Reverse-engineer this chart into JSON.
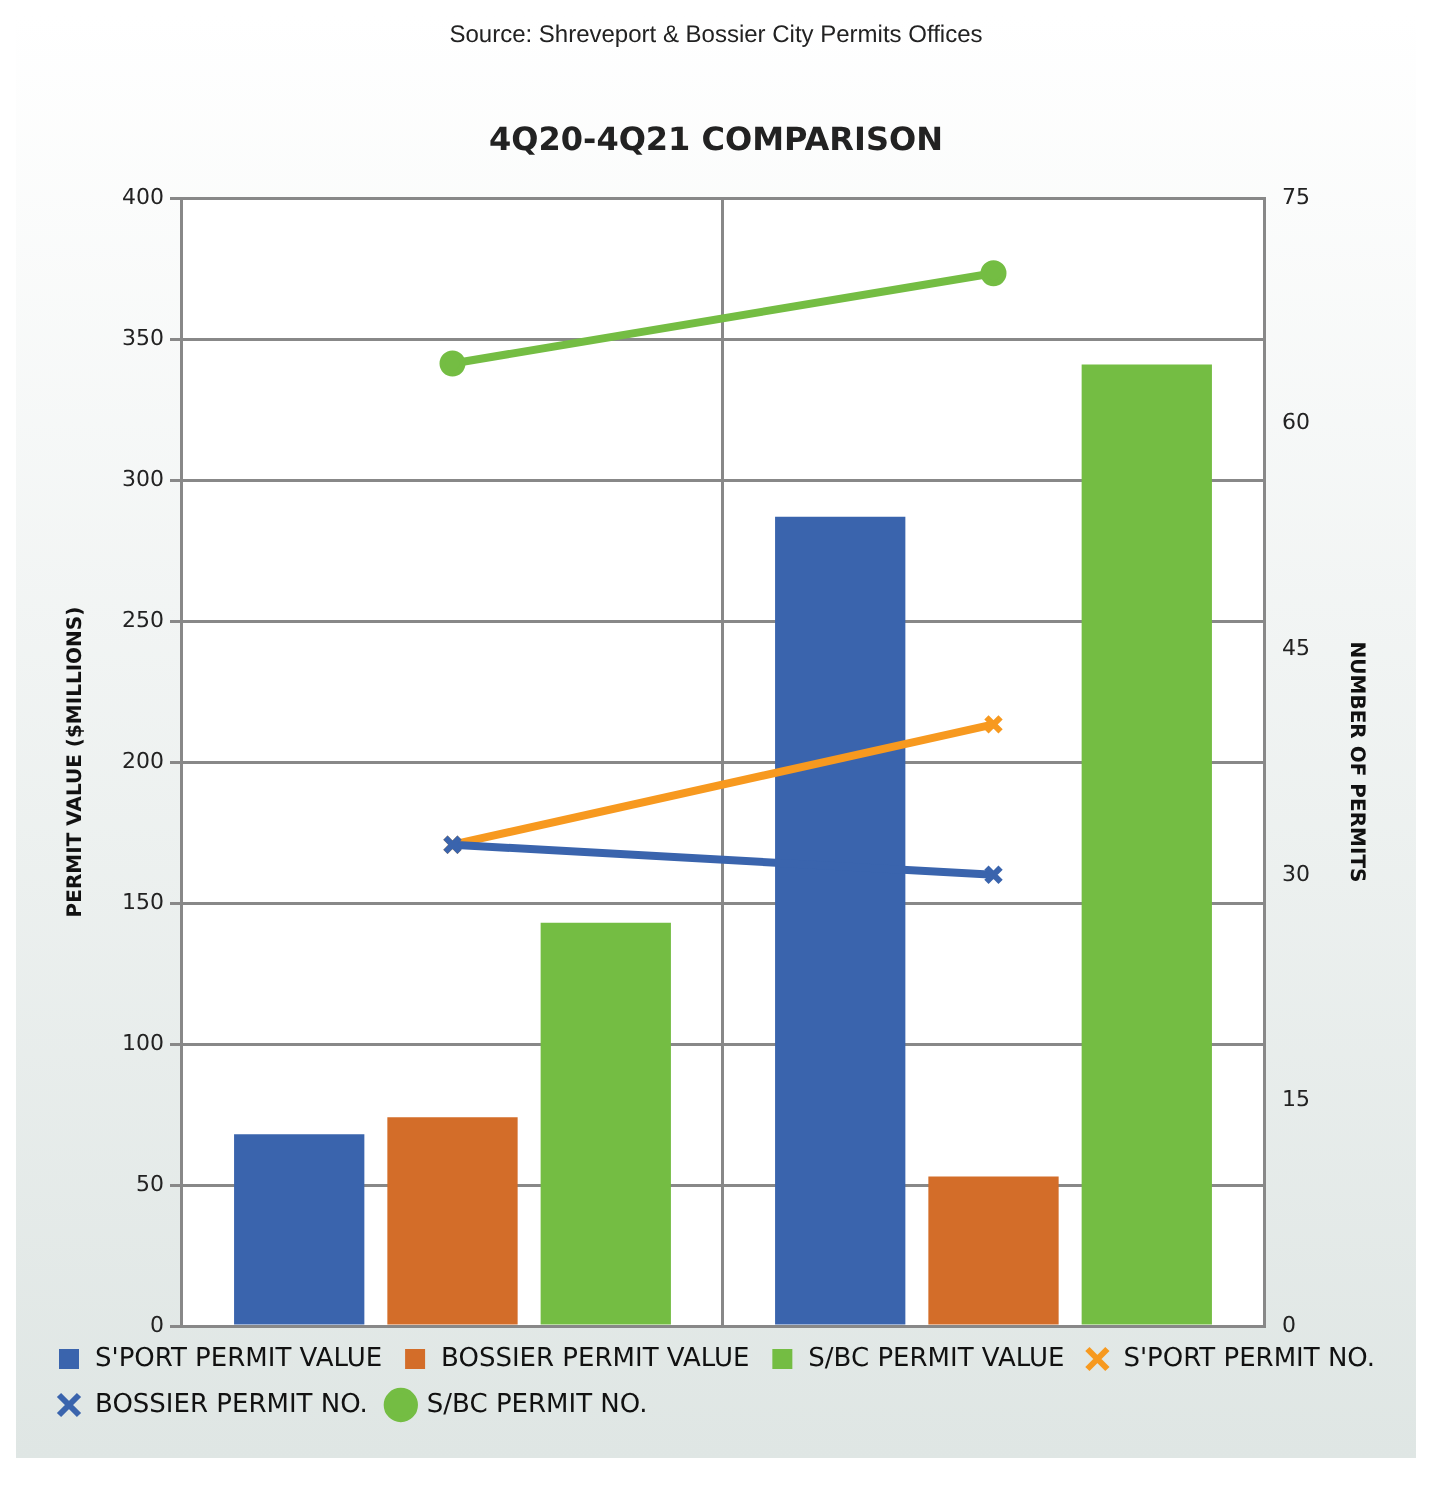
{
  "chart_data": {
    "type": "bar",
    "title": "4Q20-4Q21 COMPARISON",
    "ylabel": "PERMIT VALUE ($MILLIONS)",
    "y2label": "NUMBER OF PERMITS",
    "annotations": [
      "Source: Shreveport & Bossier City Permits Offices"
    ],
    "categories": [
      null,
      null
    ],
    "series": [
      {
        "name": "S'PORT PERMIT VALUE",
        "color": "#3a64ad",
        "values": [
          68,
          287
        ]
      },
      {
        "name": "BOSSIER PERMIT VALUE",
        "color": "#d36d29",
        "values": [
          74,
          53
        ]
      },
      {
        "name": "S/BC PERMIT VALUE",
        "color": "#74bd43",
        "values": [
          143,
          341
        ]
      },
      {
        "name": "S'PORT PERMIT NO.",
        "type": "line",
        "axis": "y2",
        "marker": "cross",
        "color": "#f7991f",
        "values": [
          32,
          40
        ]
      },
      {
        "name": "BOSSIER PERMIT NO.",
        "type": "line",
        "axis": "y2",
        "marker": "cross",
        "color": "#3a64ad",
        "values": [
          32,
          30
        ]
      },
      {
        "name": "S/BC PERMIT NO.",
        "type": "line",
        "axis": "y2",
        "marker": "circle",
        "color": "#74bd43",
        "values": [
          64,
          70
        ]
      }
    ],
    "ylim": [
      0,
      400
    ],
    "yticks": [
      0,
      50,
      100,
      150,
      200,
      250,
      300,
      350,
      400
    ],
    "y2lim": [
      0,
      75
    ],
    "y2ticks": [
      0,
      15,
      30,
      45,
      60,
      75
    ],
    "grid": true,
    "legend": "bottom"
  }
}
